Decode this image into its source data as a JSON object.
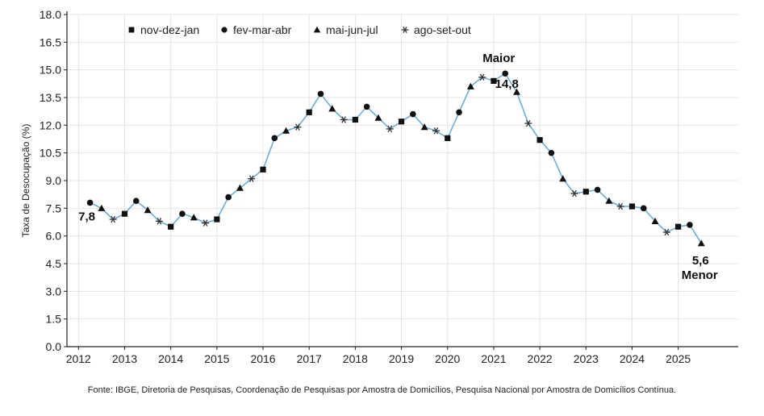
{
  "chart_data": {
    "type": "line",
    "ylabel": "Taxa de Desocupação (%)",
    "ylim": [
      0,
      18
    ],
    "yticks": [
      "0.0",
      "1.5",
      "3.0",
      "4.5",
      "6.0",
      "7.5",
      "9.0",
      "10.5",
      "12.0",
      "13.5",
      "15.0",
      "16.5",
      "18.0"
    ],
    "xticks": [
      "2012",
      "2013",
      "2014",
      "2015",
      "2016",
      "2017",
      "2018",
      "2019",
      "2020",
      "2021",
      "2022",
      "2023",
      "2024",
      "2025"
    ],
    "grid": true,
    "legend_placement": "top-left",
    "line_color": "#6baed6",
    "legend": [
      {
        "label": "nov-dez-jan",
        "marker": "square"
      },
      {
        "label": "fev-mar-abr",
        "marker": "circle"
      },
      {
        "label": "mai-jun-jul",
        "marker": "triangle"
      },
      {
        "label": "ago-set-out",
        "marker": "asterisk"
      }
    ],
    "series": [
      {
        "marker": "circle",
        "points": [
          [
            2012.25,
            7.8
          ],
          [
            2013.25,
            7.9
          ],
          [
            2014.25,
            7.2
          ],
          [
            2015.25,
            8.1
          ],
          [
            2016.25,
            11.3
          ],
          [
            2017.25,
            13.7
          ],
          [
            2018.25,
            13.0
          ],
          [
            2019.25,
            12.6
          ],
          [
            2020.25,
            12.7
          ],
          [
            2021.25,
            14.8
          ],
          [
            2022.25,
            10.5
          ],
          [
            2023.25,
            8.5
          ],
          [
            2024.25,
            7.5
          ],
          [
            2025.25,
            6.6
          ]
        ]
      },
      {
        "marker": "triangle",
        "points": [
          [
            2012.5,
            7.5
          ],
          [
            2013.5,
            7.4
          ],
          [
            2014.5,
            7.0
          ],
          [
            2015.5,
            8.6
          ],
          [
            2016.5,
            11.7
          ],
          [
            2017.5,
            12.9
          ],
          [
            2018.5,
            12.4
          ],
          [
            2019.5,
            11.9
          ],
          [
            2020.5,
            14.1
          ],
          [
            2021.5,
            13.8
          ],
          [
            2022.5,
            9.1
          ],
          [
            2023.5,
            7.9
          ],
          [
            2024.5,
            6.8
          ],
          [
            2025.5,
            5.6
          ]
        ]
      },
      {
        "marker": "asterisk",
        "points": [
          [
            2012.75,
            6.9
          ],
          [
            2013.75,
            6.8
          ],
          [
            2014.75,
            6.7
          ],
          [
            2015.75,
            9.1
          ],
          [
            2016.75,
            11.9
          ],
          [
            2017.75,
            12.3
          ],
          [
            2018.75,
            11.8
          ],
          [
            2019.75,
            11.7
          ],
          [
            2020.75,
            14.6
          ],
          [
            2021.75,
            12.1
          ],
          [
            2022.75,
            8.3
          ],
          [
            2023.75,
            7.6
          ],
          [
            2024.75,
            6.2
          ]
        ]
      },
      {
        "marker": "square",
        "points": [
          [
            2013.0,
            7.2
          ],
          [
            2014.0,
            6.5
          ],
          [
            2015.0,
            6.9
          ],
          [
            2016.0,
            9.6
          ],
          [
            2017.0,
            12.7
          ],
          [
            2018.0,
            12.3
          ],
          [
            2019.0,
            12.2
          ],
          [
            2020.0,
            11.3
          ],
          [
            2021.0,
            14.4
          ],
          [
            2022.0,
            11.2
          ],
          [
            2023.0,
            8.4
          ],
          [
            2024.0,
            7.6
          ],
          [
            2025.0,
            6.5
          ]
        ]
      }
    ],
    "annotations": [
      {
        "id": "first",
        "text": "7,8",
        "x": 2012.25,
        "y": 7.8
      },
      {
        "id": "max-word",
        "text": "Maior",
        "x": 2021.25,
        "y": 14.8
      },
      {
        "id": "max-value",
        "text": "14,8",
        "x": 2021.25,
        "y": 14.8
      },
      {
        "id": "min-value",
        "text": "5,6",
        "x": 2025.5,
        "y": 5.6
      },
      {
        "id": "min-word",
        "text": "Menor",
        "x": 2025.5,
        "y": 5.6
      }
    ]
  },
  "footer": {
    "source": "Fonte: IBGE, Diretoria de Pesquisas, Coordenação de Pesquisas por Amostra de Domicílios, Pesquisa Nacional por Amostra de Domicílios Contínua."
  }
}
